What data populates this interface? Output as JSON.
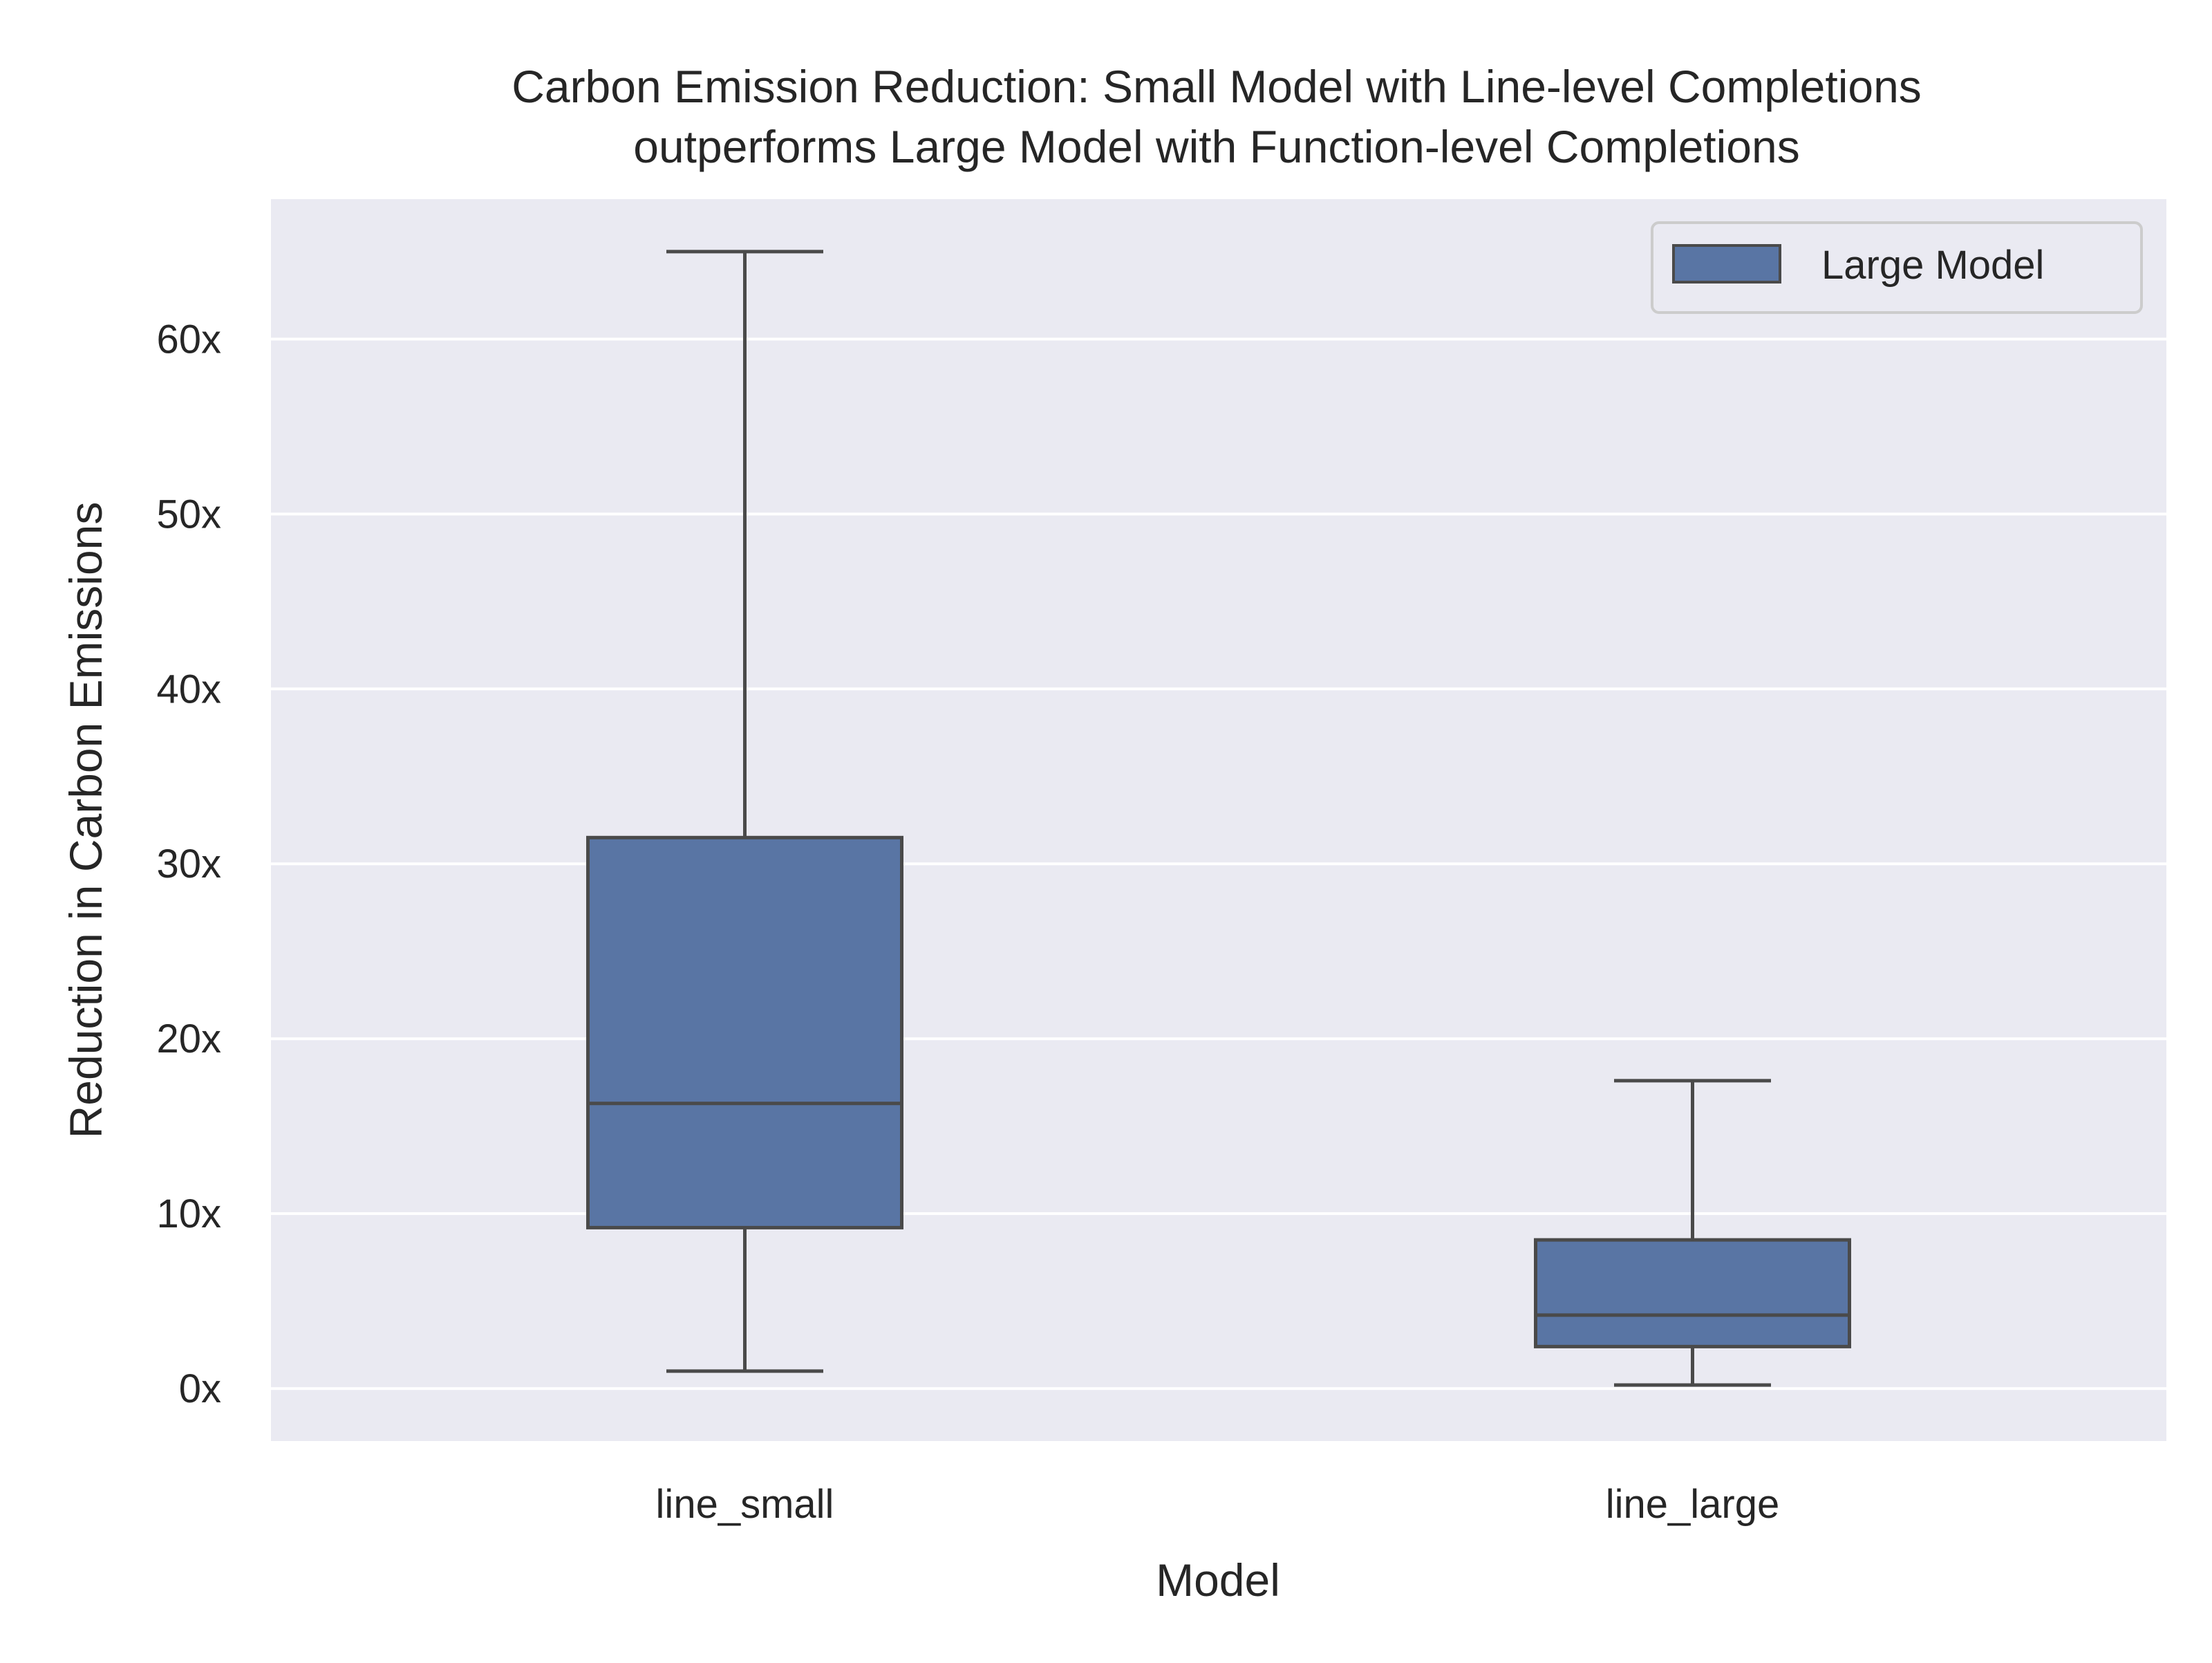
{
  "chart_data": {
    "type": "box",
    "title": "Carbon Emission Reduction: Small Model with Line-level Completions",
    "subtitle": "outperforms Large Model with Function-level Completions",
    "xlabel": "Model",
    "ylabel": "Reduction in Carbon Emissions",
    "categories": [
      "line_small",
      "line_large"
    ],
    "ylim": [
      -3,
      68
    ],
    "yticks": [
      0,
      10,
      20,
      30,
      40,
      50,
      60
    ],
    "ytick_labels": [
      "0x",
      "10x",
      "20x",
      "30x",
      "40x",
      "50x",
      "60x"
    ],
    "grid": true,
    "legend": {
      "placement": "top-right",
      "entries": [
        "Large Model"
      ]
    },
    "series": [
      {
        "name": "Large Model",
        "color": "#5975a4",
        "boxes": [
          {
            "category": "line_small",
            "whisker_low": 1.0,
            "q1": 9.2,
            "median": 16.3,
            "q3": 31.5,
            "whisker_high": 65.0
          },
          {
            "category": "line_large",
            "whisker_low": 0.2,
            "q1": 2.4,
            "median": 4.2,
            "q3": 8.5,
            "whisker_high": 17.6
          }
        ]
      }
    ],
    "colors": {
      "plot_background": "#eaeaf2",
      "grid": "#ffffff",
      "box_edge": "#4a4a4a",
      "text": "#262626"
    }
  }
}
